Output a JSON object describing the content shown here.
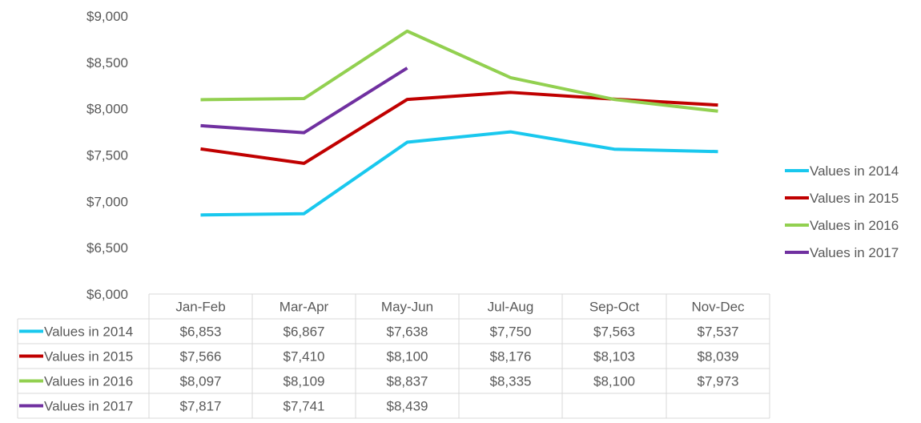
{
  "chart_data": {
    "type": "line",
    "categories": [
      "Jan-Feb",
      "Mar-Apr",
      "May-Jun",
      "Jul-Aug",
      "Sep-Oct",
      "Nov-Dec"
    ],
    "ylim": [
      6000,
      9000
    ],
    "yticks": [
      6000,
      6500,
      7000,
      7500,
      8000,
      8500,
      9000
    ],
    "ytick_labels": [
      "$6,000",
      "$6,500",
      "$7,000",
      "$7,500",
      "$8,000",
      "$8,500",
      "$9,000"
    ],
    "grid": false,
    "legend_position": "right",
    "data_table": true,
    "series": [
      {
        "name": "Values in 2014",
        "color": "#19c8ee",
        "values": [
          6853,
          6867,
          7638,
          7750,
          7563,
          7537
        ],
        "labels": [
          "$6,853",
          "$6,867",
          "$7,638",
          "$7,750",
          "$7,563",
          "$7,537"
        ]
      },
      {
        "name": "Values in 2015",
        "color": "#c00000",
        "values": [
          7566,
          7410,
          8100,
          8176,
          8103,
          8039
        ],
        "labels": [
          "$7,566",
          "$7,410",
          "$8,100",
          "$8,176",
          "$8,103",
          "$8,039"
        ]
      },
      {
        "name": "Values in 2016",
        "color": "#92d050",
        "values": [
          8097,
          8109,
          8837,
          8335,
          8100,
          7973
        ],
        "labels": [
          "$8,097",
          "$8,109",
          "$8,837",
          "$8,335",
          "$8,100",
          "$7,973"
        ]
      },
      {
        "name": "Values in 2017",
        "color": "#7030a0",
        "values": [
          7817,
          7741,
          8439,
          null,
          null,
          null
        ],
        "labels": [
          "$7,817",
          "$7,741",
          "$8,439",
          "",
          "",
          ""
        ]
      }
    ]
  }
}
